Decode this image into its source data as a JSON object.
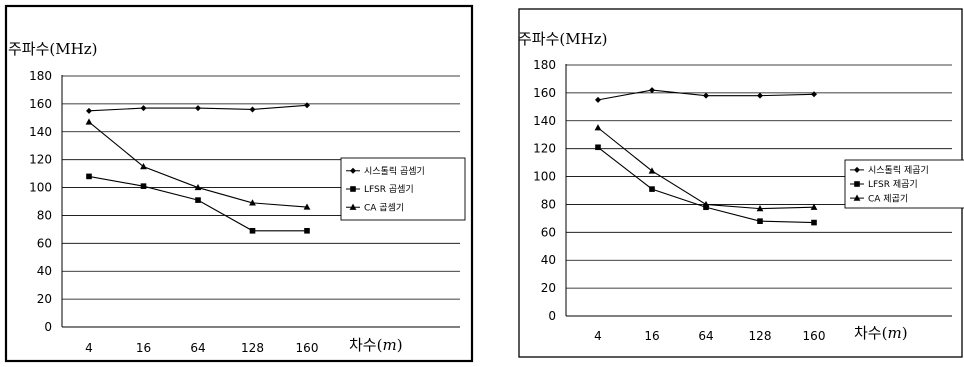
{
  "chart_data": [
    {
      "type": "line",
      "ylabel": "주파수(MHz)",
      "xlabel": "차수(m)",
      "xlabel_prefix": "차수(",
      "xlabel_var": "m",
      "xlabel_suffix": ")",
      "categories": [
        "4",
        "16",
        "64",
        "128",
        "160"
      ],
      "ylim": [
        0,
        180
      ],
      "yticks": [
        0,
        20,
        40,
        60,
        80,
        100,
        120,
        140,
        160,
        180
      ],
      "grid": true,
      "legend_position": "right",
      "series": [
        {
          "name": "시스톨릭 곱셈기",
          "marker": "diamond",
          "values": [
            155,
            157,
            157,
            156,
            159
          ]
        },
        {
          "name": "LFSR 곱셈기",
          "marker": "square",
          "values": [
            108,
            101,
            91,
            69,
            69
          ]
        },
        {
          "name": "CA 곱셈기",
          "marker": "triangle",
          "values": [
            147,
            115,
            100,
            89,
            86
          ]
        }
      ]
    },
    {
      "type": "line",
      "ylabel": "주파수(MHz)",
      "xlabel": "차수(m)",
      "xlabel_prefix": "차수(",
      "xlabel_var": "m",
      "xlabel_suffix": ")",
      "categories": [
        "4",
        "16",
        "64",
        "128",
        "160"
      ],
      "ylim": [
        0,
        180
      ],
      "yticks": [
        0,
        20,
        40,
        60,
        80,
        100,
        120,
        140,
        160,
        180
      ],
      "grid": true,
      "legend_position": "right",
      "series": [
        {
          "name": "시스톨릭 제곱기",
          "marker": "diamond",
          "values": [
            155,
            162,
            158,
            158,
            159
          ]
        },
        {
          "name": "LFSR 제곱기",
          "marker": "square",
          "values": [
            121,
            91,
            78,
            68,
            67
          ]
        },
        {
          "name": "CA 제곱기",
          "marker": "triangle",
          "values": [
            135,
            104,
            80,
            77,
            78
          ]
        }
      ]
    }
  ]
}
